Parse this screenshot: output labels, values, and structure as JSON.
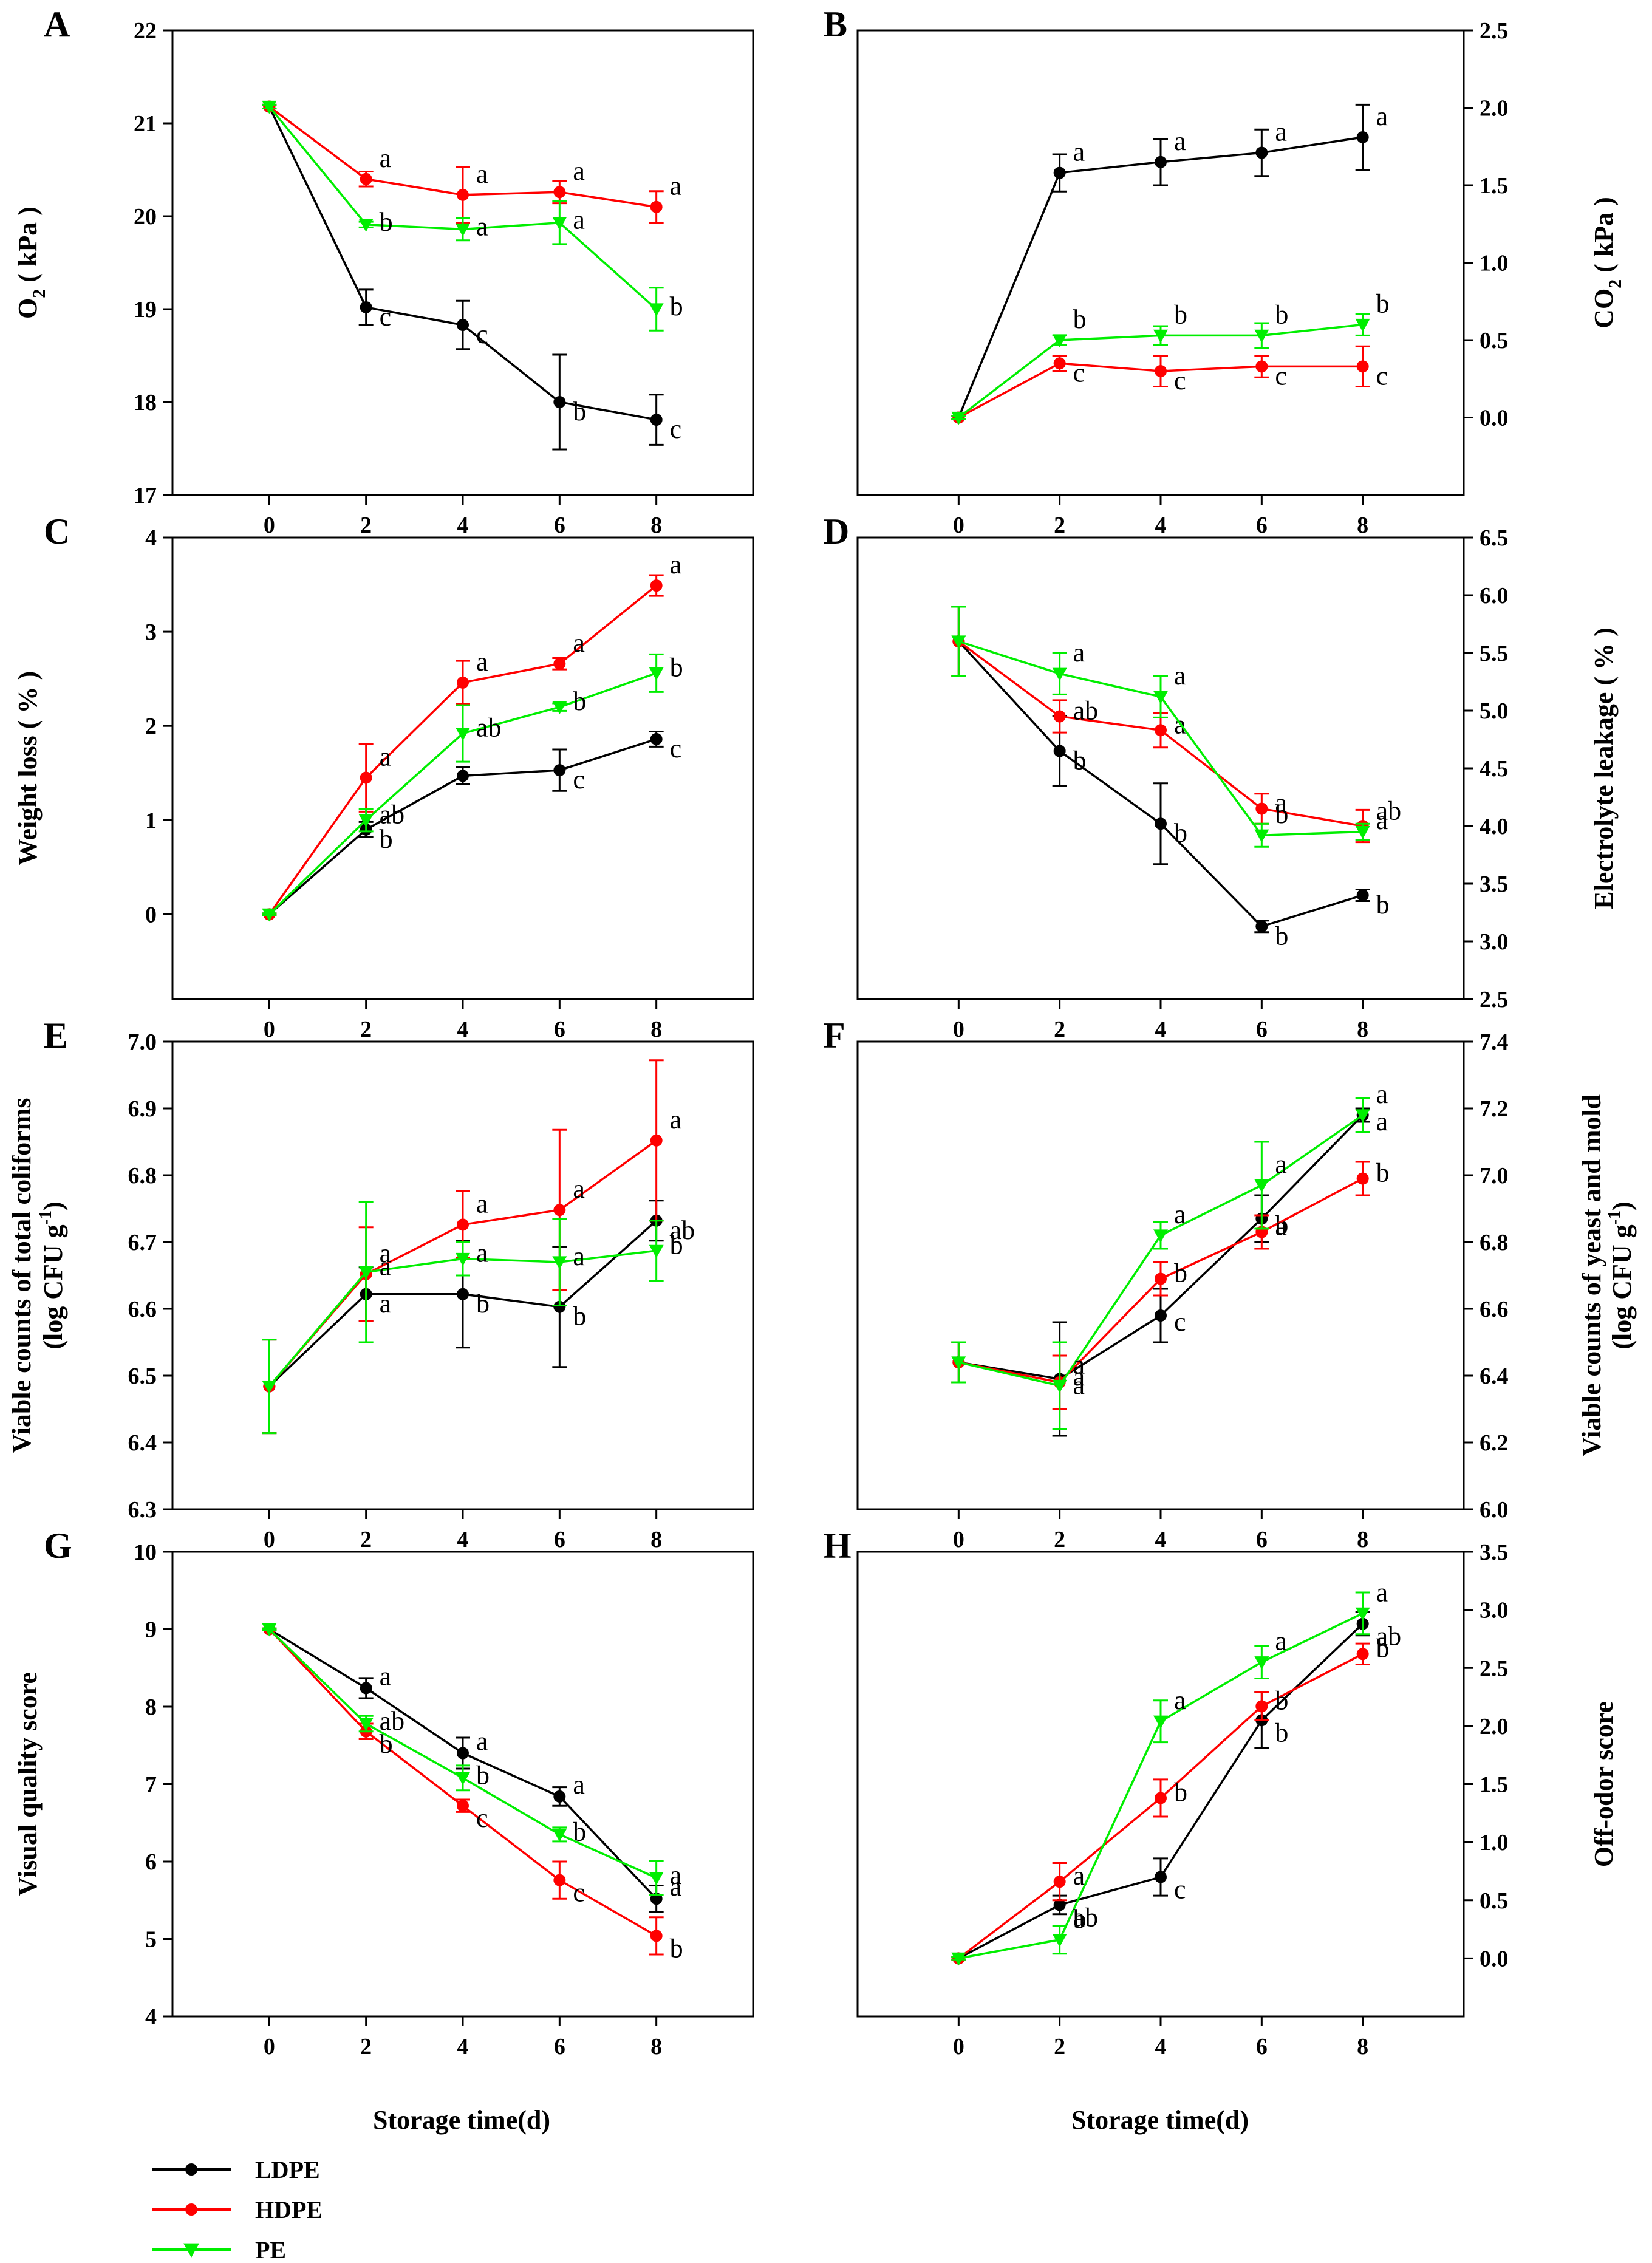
{
  "colors": {
    "LDPE": "#000000",
    "HDPE": "#ff0000",
    "PE": "#00ee00"
  },
  "legend": [
    {
      "name": "LDPE",
      "marker": "circle"
    },
    {
      "name": "HDPE",
      "marker": "circle"
    },
    {
      "name": "PE",
      "marker": "triangle-down"
    }
  ],
  "xaxis_title": "Storage time(d)",
  "chart_data": [
    {
      "panel": "A",
      "type": "line",
      "y_axis_side": "left",
      "ylabel": "O2 (kPa)",
      "ylabel_parts": [
        "O",
        "2",
        " ( kPa )"
      ],
      "ylim": [
        17,
        22
      ],
      "yticks": [
        "17",
        "18",
        "19",
        "20",
        "21",
        "22"
      ],
      "ytick_values": [
        17,
        18,
        19,
        20,
        21,
        22
      ],
      "xticks": [
        "0",
        "2",
        "4",
        "6",
        "8"
      ],
      "x": [
        0,
        2,
        4,
        6,
        8
      ],
      "xlim": [
        -2,
        10
      ],
      "series": [
        {
          "name": "LDPE",
          "values": [
            21.18,
            19.02,
            18.83,
            18.0,
            17.81
          ],
          "err": [
            0.02,
            0.19,
            0.26,
            0.51,
            0.27
          ],
          "labels": [
            "",
            "c",
            "c",
            "b",
            "c"
          ]
        },
        {
          "name": "HDPE",
          "values": [
            21.18,
            20.4,
            20.23,
            20.26,
            20.1
          ],
          "err": [
            0.02,
            0.08,
            0.3,
            0.12,
            0.17
          ],
          "labels": [
            "",
            "a",
            "a",
            "a",
            "a"
          ]
        },
        {
          "name": "PE",
          "values": [
            21.18,
            19.91,
            19.86,
            19.93,
            19.0
          ],
          "err": [
            0.02,
            0.03,
            0.12,
            0.23,
            0.23
          ],
          "labels": [
            "",
            "b",
            "a",
            "a",
            "b"
          ]
        }
      ]
    },
    {
      "panel": "B",
      "type": "line",
      "y_axis_side": "right",
      "ylabel": "CO2 (kPa)",
      "ylabel_parts": [
        "CO",
        "2",
        " ( kPa )"
      ],
      "ylim": [
        -0.5,
        2.5
      ],
      "yticks": [
        "0.0",
        "0.5",
        "1.0",
        "1.5",
        "2.0",
        "2.5"
      ],
      "ytick_values": [
        0,
        0.5,
        1.0,
        1.5,
        2.0,
        2.5
      ],
      "xticks": [
        "0",
        "2",
        "4",
        "6",
        "8"
      ],
      "x": [
        0,
        2,
        4,
        6,
        8
      ],
      "xlim": [
        -2,
        10
      ],
      "series": [
        {
          "name": "LDPE",
          "values": [
            0.0,
            1.58,
            1.65,
            1.71,
            1.81
          ],
          "err": [
            0.01,
            0.12,
            0.15,
            0.15,
            0.21
          ],
          "labels": [
            "",
            "a",
            "a",
            "a",
            "a"
          ]
        },
        {
          "name": "HDPE",
          "values": [
            0.0,
            0.35,
            0.3,
            0.33,
            0.33
          ],
          "err": [
            0.01,
            0.05,
            0.1,
            0.07,
            0.13
          ],
          "labels": [
            "",
            "c",
            "c",
            "c",
            "c"
          ]
        },
        {
          "name": "PE",
          "values": [
            0.0,
            0.5,
            0.53,
            0.53,
            0.6
          ],
          "err": [
            0.01,
            0.03,
            0.06,
            0.08,
            0.07
          ],
          "labels": [
            "",
            "b",
            "b",
            "b",
            "b"
          ]
        }
      ]
    },
    {
      "panel": "C",
      "type": "line",
      "y_axis_side": "left",
      "ylabel": "Weight loss ( % )",
      "ylim": [
        -0.9,
        4
      ],
      "yticks": [
        "0",
        "1",
        "2",
        "3",
        "4"
      ],
      "ytick_values": [
        0,
        1,
        2,
        3,
        4
      ],
      "xticks": [
        "0",
        "2",
        "4",
        "6",
        "8"
      ],
      "x": [
        0,
        2,
        4,
        6,
        8
      ],
      "xlim": [
        -2,
        10
      ],
      "series": [
        {
          "name": "LDPE",
          "values": [
            0.0,
            0.9,
            1.47,
            1.53,
            1.86
          ],
          "err": [
            0.01,
            0.08,
            0.09,
            0.22,
            0.08
          ],
          "labels": [
            "",
            "b",
            "",
            "c",
            "c"
          ]
        },
        {
          "name": "HDPE",
          "values": [
            0.0,
            1.45,
            2.46,
            2.66,
            3.49
          ],
          "err": [
            0.01,
            0.36,
            0.23,
            0.06,
            0.11
          ],
          "labels": [
            "",
            "a",
            "a",
            "a",
            "a"
          ]
        },
        {
          "name": "PE",
          "values": [
            0.0,
            1.0,
            1.92,
            2.2,
            2.56
          ],
          "err": [
            0.01,
            0.12,
            0.3,
            0.04,
            0.2
          ],
          "labels": [
            "",
            "ab",
            "ab",
            "b",
            "b"
          ]
        }
      ]
    },
    {
      "panel": "D",
      "type": "line",
      "y_axis_side": "right",
      "ylabel": "Electrolyte leakage ( % )",
      "ylim": [
        2.5,
        6.5
      ],
      "yticks": [
        "2.5",
        "3.0",
        "3.5",
        "4.0",
        "4.5",
        "5.0",
        "5.5",
        "6.0",
        "6.5"
      ],
      "ytick_values": [
        2.5,
        3.0,
        3.5,
        4.0,
        4.5,
        5.0,
        5.5,
        6.0,
        6.5
      ],
      "xticks": [
        "0",
        "2",
        "4",
        "6",
        "8"
      ],
      "x": [
        0,
        2,
        4,
        6,
        8
      ],
      "xlim": [
        -2,
        10
      ],
      "series": [
        {
          "name": "LDPE",
          "values": [
            5.6,
            4.65,
            4.02,
            3.13,
            3.4
          ],
          "err": [
            0.3,
            0.3,
            0.35,
            0.05,
            0.05
          ],
          "labels": [
            "",
            "b",
            "b",
            "b",
            "b"
          ]
        },
        {
          "name": "HDPE",
          "values": [
            5.6,
            4.95,
            4.83,
            4.15,
            4.0
          ],
          "err": [
            0.3,
            0.14,
            0.15,
            0.13,
            0.14
          ],
          "labels": [
            "",
            "ab",
            "a",
            "a",
            "a"
          ]
        },
        {
          "name": "PE",
          "values": [
            5.6,
            5.32,
            5.12,
            3.92,
            3.95
          ],
          "err": [
            0.3,
            0.18,
            0.18,
            0.1,
            0.07
          ],
          "labels": [
            "",
            "a",
            "a",
            "b",
            "ab"
          ]
        }
      ]
    },
    {
      "panel": "E",
      "type": "line",
      "y_axis_side": "left",
      "ylabel_lines": [
        "Viable counts of total coliforms",
        "(log CFU g",
        "-1",
        ")"
      ],
      "ylim": [
        6.3,
        7.0
      ],
      "yticks": [
        "6.3",
        "6.4",
        "6.5",
        "6.6",
        "6.7",
        "6.8",
        "6.9",
        "7.0"
      ],
      "ytick_values": [
        6.3,
        6.4,
        6.5,
        6.6,
        6.7,
        6.8,
        6.9,
        7.0
      ],
      "xticks": [
        "0",
        "2",
        "4",
        "6",
        "8"
      ],
      "x": [
        0,
        2,
        4,
        6,
        8
      ],
      "xlim": [
        -2,
        10
      ],
      "series": [
        {
          "name": "LDPE",
          "values": [
            6.484,
            6.622,
            6.622,
            6.603,
            6.732
          ],
          "err": [
            0.07,
            0.04,
            0.08,
            0.09,
            0.03
          ],
          "labels": [
            "",
            "a",
            "b",
            "b",
            "ab"
          ]
        },
        {
          "name": "HDPE",
          "values": [
            6.484,
            6.652,
            6.726,
            6.748,
            6.852
          ],
          "err": [
            0.07,
            0.07,
            0.05,
            0.12,
            0.12
          ],
          "labels": [
            "",
            "a",
            "a",
            "a",
            "a"
          ]
        },
        {
          "name": "PE",
          "values": [
            6.484,
            6.655,
            6.675,
            6.67,
            6.687
          ],
          "err": [
            0.07,
            0.105,
            0.025,
            0.065,
            0.045
          ],
          "labels": [
            "",
            "a",
            "a",
            "a",
            "b"
          ]
        }
      ]
    },
    {
      "panel": "F",
      "type": "line",
      "y_axis_side": "right",
      "ylabel_lines": [
        "Viable counts of yeast and mold",
        "(log CFU g",
        "-1",
        ")"
      ],
      "ylim": [
        6.0,
        7.4
      ],
      "yticks": [
        "6.0",
        "6.2",
        "6.4",
        "6.6",
        "6.8",
        "7.0",
        "7.2",
        "7.4"
      ],
      "ytick_values": [
        6.0,
        6.2,
        6.4,
        6.6,
        6.8,
        7.0,
        7.2,
        7.4
      ],
      "xticks": [
        "0",
        "2",
        "4",
        "6",
        "8"
      ],
      "x": [
        0,
        2,
        4,
        6,
        8
      ],
      "xlim": [
        -2,
        10
      ],
      "series": [
        {
          "name": "LDPE",
          "values": [
            6.44,
            6.39,
            6.58,
            6.87,
            7.18
          ],
          "err": [
            0.06,
            0.17,
            0.08,
            0.07,
            0.02
          ],
          "labels": [
            "",
            "a",
            "c",
            "b",
            "a"
          ]
        },
        {
          "name": "HDPE",
          "values": [
            6.44,
            6.38,
            6.69,
            6.83,
            6.99
          ],
          "err": [
            0.06,
            0.08,
            0.05,
            0.05,
            0.05
          ],
          "labels": [
            "",
            "a",
            "b",
            "a",
            "b"
          ]
        },
        {
          "name": "PE",
          "values": [
            6.44,
            6.37,
            6.82,
            6.97,
            7.18
          ],
          "err": [
            0.06,
            0.13,
            0.04,
            0.13,
            0.05
          ],
          "labels": [
            "",
            "a",
            "a",
            "a",
            "a"
          ]
        }
      ]
    },
    {
      "panel": "G",
      "type": "line",
      "y_axis_side": "left",
      "ylabel": "Visual quality score",
      "ylim": [
        4,
        10
      ],
      "yticks": [
        "4",
        "5",
        "6",
        "7",
        "8",
        "9",
        "10"
      ],
      "ytick_values": [
        4,
        5,
        6,
        7,
        8,
        9,
        10
      ],
      "xticks": [
        "0",
        "2",
        "4",
        "6",
        "8"
      ],
      "x": [
        0,
        2,
        4,
        6,
        8
      ],
      "xlim": [
        -2,
        10
      ],
      "series": [
        {
          "name": "LDPE",
          "values": [
            9.0,
            8.24,
            7.4,
            6.84,
            5.52
          ],
          "err": [
            0.01,
            0.13,
            0.2,
            0.12,
            0.17
          ],
          "labels": [
            "",
            "a",
            "a",
            "a",
            "a"
          ]
        },
        {
          "name": "HDPE",
          "values": [
            9.0,
            7.68,
            6.72,
            5.76,
            5.04
          ],
          "err": [
            0.01,
            0.1,
            0.08,
            0.24,
            0.24
          ],
          "labels": [
            "",
            "b",
            "c",
            "c",
            "b"
          ]
        },
        {
          "name": "PE",
          "values": [
            9.0,
            7.78,
            7.08,
            6.35,
            5.79
          ],
          "err": [
            0.01,
            0.1,
            0.16,
            0.09,
            0.22
          ],
          "labels": [
            "",
            "ab",
            "b",
            "b",
            "a"
          ]
        }
      ]
    },
    {
      "panel": "H",
      "type": "line",
      "y_axis_side": "right",
      "ylabel": "Off-odor score",
      "ylim": [
        -0.5,
        3.5
      ],
      "yticks": [
        "0.0",
        "0.5",
        "1.0",
        "1.5",
        "2.0",
        "2.5",
        "3.0",
        "3.5"
      ],
      "ytick_values": [
        0,
        0.5,
        1.0,
        1.5,
        2.0,
        2.5,
        3.0,
        3.5
      ],
      "xticks": [
        "0",
        "2",
        "4",
        "6",
        "8"
      ],
      "x": [
        0,
        2,
        4,
        6,
        8
      ],
      "xlim": [
        -2,
        10
      ],
      "series": [
        {
          "name": "LDPE",
          "values": [
            0.0,
            0.46,
            0.7,
            2.05,
            2.88
          ],
          "err": [
            0.01,
            0.08,
            0.16,
            0.24,
            0.1
          ],
          "labels": [
            "",
            "ab",
            "c",
            "b",
            "ab"
          ]
        },
        {
          "name": "HDPE",
          "values": [
            0.0,
            0.66,
            1.38,
            2.17,
            2.62
          ],
          "err": [
            0.01,
            0.16,
            0.16,
            0.12,
            0.09
          ],
          "labels": [
            "",
            "a",
            "b",
            "b",
            "b"
          ]
        },
        {
          "name": "PE",
          "values": [
            0.0,
            0.16,
            2.04,
            2.55,
            2.97
          ],
          "err": [
            0.01,
            0.12,
            0.18,
            0.14,
            0.18
          ],
          "labels": [
            "",
            "b",
            "a",
            "a",
            "a"
          ]
        }
      ]
    }
  ]
}
